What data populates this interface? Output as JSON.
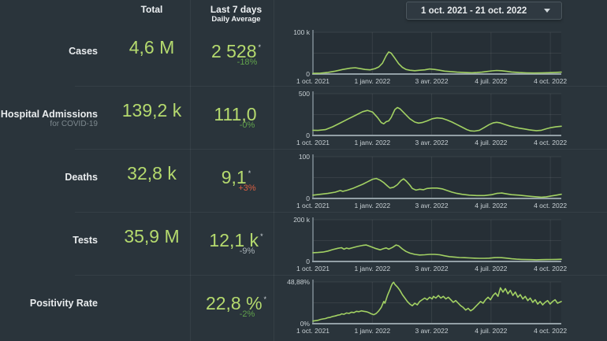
{
  "header": {
    "total_label": "Total",
    "last7_label": "Last 7 days",
    "daily_avg_label": "Daily Average",
    "date_range": "1 oct. 2021 - 21 oct. 2022"
  },
  "colors": {
    "background": "#2a343b",
    "value_green": "#b5da6e",
    "line_green": "#a2d163",
    "delta_green": "#61a24c",
    "delta_orange": "#dc5f41",
    "delta_gray": "#aab4b9"
  },
  "rows": [
    {
      "label": "Cases",
      "sublabel": "",
      "total": "4,6 M",
      "daily": "2 528",
      "marker": "*",
      "delta": "-18%",
      "delta_color": "#61a24c"
    },
    {
      "label": "Hospital Admissions",
      "sublabel": "for COVID-19",
      "total": "139,2 k",
      "daily": "111,0",
      "marker": "",
      "delta": "-0%",
      "delta_color": "#61a24c"
    },
    {
      "label": "Deaths",
      "sublabel": "",
      "total": "32,8 k",
      "daily": "9,1",
      "marker": "*",
      "delta": "+3%",
      "delta_color": "#dc5f41"
    },
    {
      "label": "Tests",
      "sublabel": "",
      "total": "35,9 M",
      "daily": "12,1 k",
      "marker": "*",
      "delta": "-9%",
      "delta_color": "#aab4b9"
    },
    {
      "label": "Positivity Rate",
      "sublabel": "",
      "total": "",
      "daily": "22,8 %",
      "marker": "*",
      "delta": "-2%",
      "delta_color": "#61a24c"
    }
  ],
  "chart_data": [
    {
      "type": "line",
      "name": "cases-daily",
      "title": "Cases daily trend",
      "y_top_label": "100 k",
      "y_bottom_label": "0",
      "ymax": 100,
      "unit_hint": "thousands per day",
      "x_tick_labels": [
        "1 oct. 2021",
        "1 janv. 2022",
        "3 avr. 2022",
        "4 juil. 2022",
        "4 oct. 2022"
      ],
      "x_tick_positions": [
        0,
        0.239,
        0.478,
        0.717,
        0.956
      ],
      "points": [
        [
          0,
          1.5
        ],
        [
          0.03,
          2
        ],
        [
          0.06,
          4
        ],
        [
          0.09,
          7
        ],
        [
          0.12,
          11
        ],
        [
          0.15,
          14
        ],
        [
          0.17,
          15
        ],
        [
          0.19,
          13
        ],
        [
          0.21,
          11
        ],
        [
          0.23,
          10
        ],
        [
          0.25,
          13
        ],
        [
          0.265,
          17
        ],
        [
          0.28,
          26
        ],
        [
          0.295,
          44
        ],
        [
          0.305,
          53
        ],
        [
          0.315,
          50
        ],
        [
          0.33,
          38
        ],
        [
          0.345,
          25
        ],
        [
          0.36,
          16
        ],
        [
          0.375,
          11
        ],
        [
          0.39,
          9
        ],
        [
          0.41,
          8
        ],
        [
          0.43,
          9
        ],
        [
          0.45,
          10
        ],
        [
          0.47,
          12
        ],
        [
          0.49,
          11
        ],
        [
          0.51,
          9
        ],
        [
          0.53,
          7
        ],
        [
          0.55,
          6
        ],
        [
          0.58,
          4.5
        ],
        [
          0.61,
          3.5
        ],
        [
          0.64,
          3
        ],
        [
          0.66,
          3.5
        ],
        [
          0.68,
          4.5
        ],
        [
          0.7,
          6
        ],
        [
          0.72,
          7.5
        ],
        [
          0.74,
          8.5
        ],
        [
          0.76,
          8
        ],
        [
          0.78,
          6.5
        ],
        [
          0.8,
          5
        ],
        [
          0.83,
          3.5
        ],
        [
          0.86,
          2.8
        ],
        [
          0.89,
          2.4
        ],
        [
          0.92,
          2.6
        ],
        [
          0.95,
          3.2
        ],
        [
          0.98,
          4
        ],
        [
          1,
          4.5
        ]
      ]
    },
    {
      "type": "line",
      "name": "hospital-admissions-daily",
      "title": "Hospital admissions daily trend",
      "y_top_label": "500",
      "y_bottom_label": "0",
      "ymax": 500,
      "unit_hint": "admissions per day",
      "x_tick_labels": [
        "1 oct. 2021",
        "1 janv. 2022",
        "3 avr. 2022",
        "4 juil. 2022",
        "4 oct. 2022"
      ],
      "x_tick_positions": [
        0,
        0.239,
        0.478,
        0.717,
        0.956
      ],
      "points": [
        [
          0,
          62
        ],
        [
          0.02,
          60
        ],
        [
          0.05,
          70
        ],
        [
          0.08,
          105
        ],
        [
          0.11,
          150
        ],
        [
          0.14,
          195
        ],
        [
          0.17,
          240
        ],
        [
          0.2,
          285
        ],
        [
          0.22,
          300
        ],
        [
          0.24,
          280
        ],
        [
          0.26,
          215
        ],
        [
          0.275,
          155
        ],
        [
          0.285,
          140
        ],
        [
          0.295,
          165
        ],
        [
          0.305,
          175
        ],
        [
          0.315,
          215
        ],
        [
          0.33,
          310
        ],
        [
          0.34,
          335
        ],
        [
          0.35,
          320
        ],
        [
          0.37,
          260
        ],
        [
          0.39,
          200
        ],
        [
          0.41,
          160
        ],
        [
          0.425,
          148
        ],
        [
          0.44,
          155
        ],
        [
          0.46,
          175
        ],
        [
          0.48,
          200
        ],
        [
          0.5,
          210
        ],
        [
          0.52,
          205
        ],
        [
          0.54,
          185
        ],
        [
          0.56,
          160
        ],
        [
          0.58,
          130
        ],
        [
          0.6,
          100
        ],
        [
          0.62,
          70
        ],
        [
          0.635,
          55
        ],
        [
          0.65,
          52
        ],
        [
          0.67,
          62
        ],
        [
          0.69,
          95
        ],
        [
          0.71,
          130
        ],
        [
          0.725,
          150
        ],
        [
          0.74,
          158
        ],
        [
          0.755,
          150
        ],
        [
          0.77,
          135
        ],
        [
          0.79,
          115
        ],
        [
          0.81,
          100
        ],
        [
          0.83,
          88
        ],
        [
          0.85,
          78
        ],
        [
          0.87,
          68
        ],
        [
          0.885,
          62
        ],
        [
          0.9,
          58
        ],
        [
          0.92,
          62
        ],
        [
          0.94,
          80
        ],
        [
          0.96,
          95
        ],
        [
          0.98,
          105
        ],
        [
          1,
          110
        ]
      ]
    },
    {
      "type": "line",
      "name": "deaths-daily",
      "title": "Deaths daily trend",
      "y_top_label": "100",
      "y_bottom_label": "0",
      "ymax": 100,
      "unit_hint": "deaths per day",
      "x_tick_labels": [
        "1 oct. 2021",
        "1 janv. 2022",
        "3 avr. 2022",
        "4 juil. 2022",
        "4 oct. 2022"
      ],
      "x_tick_positions": [
        0,
        0.239,
        0.478,
        0.717,
        0.956
      ],
      "points": [
        [
          0,
          8
        ],
        [
          0.03,
          10
        ],
        [
          0.06,
          12
        ],
        [
          0.09,
          15
        ],
        [
          0.11,
          19
        ],
        [
          0.12,
          17
        ],
        [
          0.14,
          20
        ],
        [
          0.16,
          24
        ],
        [
          0.18,
          29
        ],
        [
          0.2,
          34
        ],
        [
          0.22,
          40
        ],
        [
          0.24,
          46
        ],
        [
          0.255,
          48
        ],
        [
          0.27,
          44
        ],
        [
          0.285,
          38
        ],
        [
          0.3,
          30
        ],
        [
          0.31,
          25
        ],
        [
          0.325,
          27
        ],
        [
          0.34,
          33
        ],
        [
          0.355,
          43
        ],
        [
          0.365,
          47
        ],
        [
          0.375,
          42
        ],
        [
          0.39,
          32
        ],
        [
          0.4,
          24
        ],
        [
          0.415,
          20
        ],
        [
          0.43,
          22
        ],
        [
          0.445,
          21
        ],
        [
          0.46,
          24
        ],
        [
          0.48,
          25
        ],
        [
          0.5,
          25
        ],
        [
          0.52,
          23
        ],
        [
          0.54,
          19
        ],
        [
          0.56,
          15
        ],
        [
          0.58,
          12
        ],
        [
          0.6,
          10
        ],
        [
          0.63,
          8
        ],
        [
          0.66,
          7
        ],
        [
          0.69,
          7
        ],
        [
          0.72,
          9
        ],
        [
          0.74,
          12
        ],
        [
          0.76,
          13
        ],
        [
          0.78,
          11
        ],
        [
          0.8,
          9
        ],
        [
          0.83,
          8
        ],
        [
          0.86,
          6
        ],
        [
          0.88,
          5
        ],
        [
          0.9,
          4
        ],
        [
          0.92,
          3
        ],
        [
          0.94,
          4
        ],
        [
          0.96,
          6
        ],
        [
          0.98,
          8
        ],
        [
          1,
          10
        ]
      ]
    },
    {
      "type": "line",
      "name": "tests-daily",
      "title": "Tests daily trend",
      "y_top_label": "200 k",
      "y_bottom_label": "0",
      "ymax": 200,
      "unit_hint": "thousands per day",
      "x_tick_labels": [
        "1 oct. 2021",
        "1 janv. 2022",
        "3 avr. 2022",
        "4 juil. 2022",
        "4 oct. 2022"
      ],
      "x_tick_positions": [
        0,
        0.239,
        0.478,
        0.717,
        0.956
      ],
      "points": [
        [
          0,
          42
        ],
        [
          0.02,
          43
        ],
        [
          0.04,
          45
        ],
        [
          0.06,
          50
        ],
        [
          0.08,
          57
        ],
        [
          0.1,
          63
        ],
        [
          0.115,
          66
        ],
        [
          0.125,
          59
        ],
        [
          0.135,
          64
        ],
        [
          0.145,
          61
        ],
        [
          0.16,
          66
        ],
        [
          0.18,
          72
        ],
        [
          0.2,
          77
        ],
        [
          0.215,
          79
        ],
        [
          0.23,
          72
        ],
        [
          0.25,
          63
        ],
        [
          0.27,
          56
        ],
        [
          0.285,
          62
        ],
        [
          0.295,
          65
        ],
        [
          0.305,
          59
        ],
        [
          0.32,
          67
        ],
        [
          0.335,
          79
        ],
        [
          0.345,
          75
        ],
        [
          0.36,
          60
        ],
        [
          0.375,
          48
        ],
        [
          0.39,
          40
        ],
        [
          0.41,
          34
        ],
        [
          0.43,
          31
        ],
        [
          0.45,
          32
        ],
        [
          0.47,
          34
        ],
        [
          0.49,
          34
        ],
        [
          0.51,
          32
        ],
        [
          0.53,
          27
        ],
        [
          0.55,
          23
        ],
        [
          0.57,
          21
        ],
        [
          0.59,
          19
        ],
        [
          0.61,
          18
        ],
        [
          0.63,
          17
        ],
        [
          0.65,
          16
        ],
        [
          0.67,
          15
        ],
        [
          0.69,
          15
        ],
        [
          0.71,
          16
        ],
        [
          0.73,
          18
        ],
        [
          0.745,
          19
        ],
        [
          0.76,
          18
        ],
        [
          0.78,
          16
        ],
        [
          0.8,
          13
        ],
        [
          0.82,
          11
        ],
        [
          0.84,
          10
        ],
        [
          0.86,
          9
        ],
        [
          0.88,
          8.5
        ],
        [
          0.9,
          8
        ],
        [
          0.92,
          8.5
        ],
        [
          0.94,
          9
        ],
        [
          0.96,
          9.5
        ],
        [
          0.98,
          10
        ],
        [
          1,
          10.5
        ]
      ]
    },
    {
      "type": "line",
      "name": "positivity-rate",
      "title": "Positivity rate trend",
      "y_top_label": "48,88%",
      "y_bottom_label": "0%",
      "ymax": 48.88,
      "unit_hint": "percent",
      "x_tick_labels": [
        "1 oct. 2021",
        "1 janv. 2022",
        "3 avr. 2022",
        "4 juil. 2022",
        "4 oct. 2022"
      ],
      "x_tick_positions": [
        0,
        0.239,
        0.478,
        0.717,
        0.956
      ],
      "points": [
        [
          0,
          3
        ],
        [
          0.01,
          3.5
        ],
        [
          0.02,
          4
        ],
        [
          0.03,
          5
        ],
        [
          0.04,
          5.5
        ],
        [
          0.05,
          6
        ],
        [
          0.06,
          7
        ],
        [
          0.07,
          7.5
        ],
        [
          0.08,
          8.5
        ],
        [
          0.09,
          9
        ],
        [
          0.1,
          10
        ],
        [
          0.11,
          10.5
        ],
        [
          0.115,
          11.5
        ],
        [
          0.125,
          11
        ],
        [
          0.135,
          12.5
        ],
        [
          0.145,
          12
        ],
        [
          0.155,
          13.5
        ],
        [
          0.165,
          13
        ],
        [
          0.175,
          14.5
        ],
        [
          0.185,
          14
        ],
        [
          0.195,
          15
        ],
        [
          0.205,
          14.5
        ],
        [
          0.215,
          14
        ],
        [
          0.225,
          13
        ],
        [
          0.235,
          11.5
        ],
        [
          0.245,
          10.5
        ],
        [
          0.255,
          12
        ],
        [
          0.265,
          15
        ],
        [
          0.275,
          19
        ],
        [
          0.285,
          26
        ],
        [
          0.29,
          24
        ],
        [
          0.3,
          33
        ],
        [
          0.31,
          40
        ],
        [
          0.315,
          44
        ],
        [
          0.32,
          47
        ],
        [
          0.325,
          48.5
        ],
        [
          0.33,
          46
        ],
        [
          0.34,
          43
        ],
        [
          0.35,
          39
        ],
        [
          0.36,
          34
        ],
        [
          0.37,
          30
        ],
        [
          0.38,
          26
        ],
        [
          0.39,
          23
        ],
        [
          0.4,
          21
        ],
        [
          0.41,
          24
        ],
        [
          0.42,
          22
        ],
        [
          0.43,
          26
        ],
        [
          0.44,
          28
        ],
        [
          0.45,
          30
        ],
        [
          0.46,
          28
        ],
        [
          0.47,
          31
        ],
        [
          0.48,
          29
        ],
        [
          0.485,
          32
        ],
        [
          0.495,
          30
        ],
        [
          0.505,
          33
        ],
        [
          0.515,
          30
        ],
        [
          0.525,
          32
        ],
        [
          0.535,
          29
        ],
        [
          0.545,
          31
        ],
        [
          0.555,
          28
        ],
        [
          0.565,
          25
        ],
        [
          0.575,
          27
        ],
        [
          0.585,
          24
        ],
        [
          0.595,
          21
        ],
        [
          0.605,
          19
        ],
        [
          0.615,
          16
        ],
        [
          0.625,
          18
        ],
        [
          0.635,
          15
        ],
        [
          0.645,
          17
        ],
        [
          0.655,
          20
        ],
        [
          0.665,
          23
        ],
        [
          0.675,
          26
        ],
        [
          0.685,
          24
        ],
        [
          0.695,
          28
        ],
        [
          0.705,
          31
        ],
        [
          0.715,
          28
        ],
        [
          0.725,
          33
        ],
        [
          0.735,
          36
        ],
        [
          0.745,
          32
        ],
        [
          0.755,
          42
        ],
        [
          0.765,
          37
        ],
        [
          0.775,
          41
        ],
        [
          0.785,
          35
        ],
        [
          0.795,
          39
        ],
        [
          0.805,
          33
        ],
        [
          0.815,
          37
        ],
        [
          0.825,
          31
        ],
        [
          0.835,
          34
        ],
        [
          0.845,
          29
        ],
        [
          0.855,
          32
        ],
        [
          0.865,
          27
        ],
        [
          0.875,
          30
        ],
        [
          0.885,
          25
        ],
        [
          0.895,
          28
        ],
        [
          0.905,
          23
        ],
        [
          0.915,
          26
        ],
        [
          0.925,
          22
        ],
        [
          0.935,
          25
        ],
        [
          0.945,
          27
        ],
        [
          0.955,
          23
        ],
        [
          0.965,
          26
        ],
        [
          0.975,
          28
        ],
        [
          0.985,
          24
        ],
        [
          1,
          26
        ]
      ]
    }
  ]
}
